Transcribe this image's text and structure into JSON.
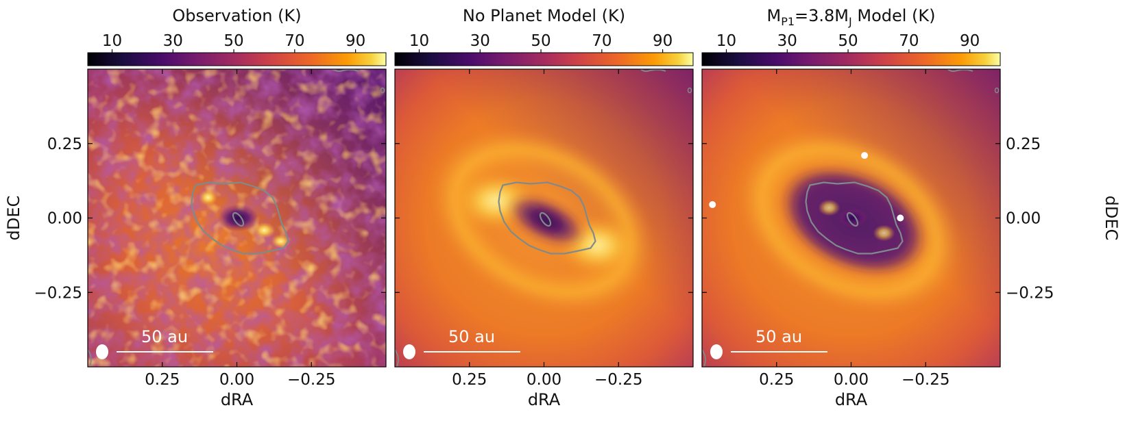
{
  "chart_data": [
    {
      "type": "heatmap",
      "title": "Observation (K)",
      "xlabel": "dRA",
      "ylabel": "dDEC",
      "ylabel_side": "left",
      "colorbar": {
        "ticks": [
          "10",
          "30",
          "50",
          "70",
          "90"
        ],
        "range": [
          2,
          100
        ],
        "colormap": "inferno"
      },
      "x_ticks": [
        "0.25",
        "0.00",
        "−0.25"
      ],
      "y_ticks": [
        "0.25",
        "0.00",
        "−0.25"
      ],
      "xlim": [
        0.5,
        -0.5
      ],
      "ylim": [
        -0.5,
        0.5
      ],
      "scale_bar_label": "50 au",
      "planets": []
    },
    {
      "type": "heatmap",
      "title": "No Planet Model (K)",
      "xlabel": "dRA",
      "ylabel": "",
      "ylabel_side": "none",
      "colorbar": {
        "ticks": [
          "10",
          "30",
          "50",
          "70",
          "90"
        ],
        "range": [
          2,
          100
        ],
        "colormap": "inferno"
      },
      "x_ticks": [
        "0.25",
        "0.00",
        "−0.25"
      ],
      "y_ticks": [],
      "xlim": [
        0.5,
        -0.5
      ],
      "ylim": [
        -0.5,
        0.5
      ],
      "scale_bar_label": "50 au",
      "planets": []
    },
    {
      "type": "heatmap",
      "title": "M",
      "title_sub": "P1",
      "title_mid": "=3.8M",
      "title_sub2": "J",
      "title_end": " Model (K)",
      "xlabel": "dRA",
      "ylabel": "dDEC",
      "ylabel_side": "right",
      "colorbar": {
        "ticks": [
          "10",
          "30",
          "50",
          "70",
          "90"
        ],
        "range": [
          2,
          100
        ],
        "colormap": "inferno"
      },
      "x_ticks": [
        "0.25",
        "0.00",
        "−0.25"
      ],
      "y_ticks": [
        "0.25",
        "0.00",
        "−0.25"
      ],
      "xlim": [
        0.5,
        -0.5
      ],
      "ylim": [
        -0.5,
        0.5
      ],
      "scale_bar_label": "50 au",
      "planets": [
        {
          "dra": 0.465,
          "ddec": 0.045
        },
        {
          "dra": -0.045,
          "ddec": 0.21
        },
        {
          "dra": -0.165,
          "ddec": 0.0
        }
      ]
    }
  ],
  "colors": {
    "contour": "#7f8a8c",
    "marker": "#ffffff",
    "scale_bar": "#ffffff"
  }
}
